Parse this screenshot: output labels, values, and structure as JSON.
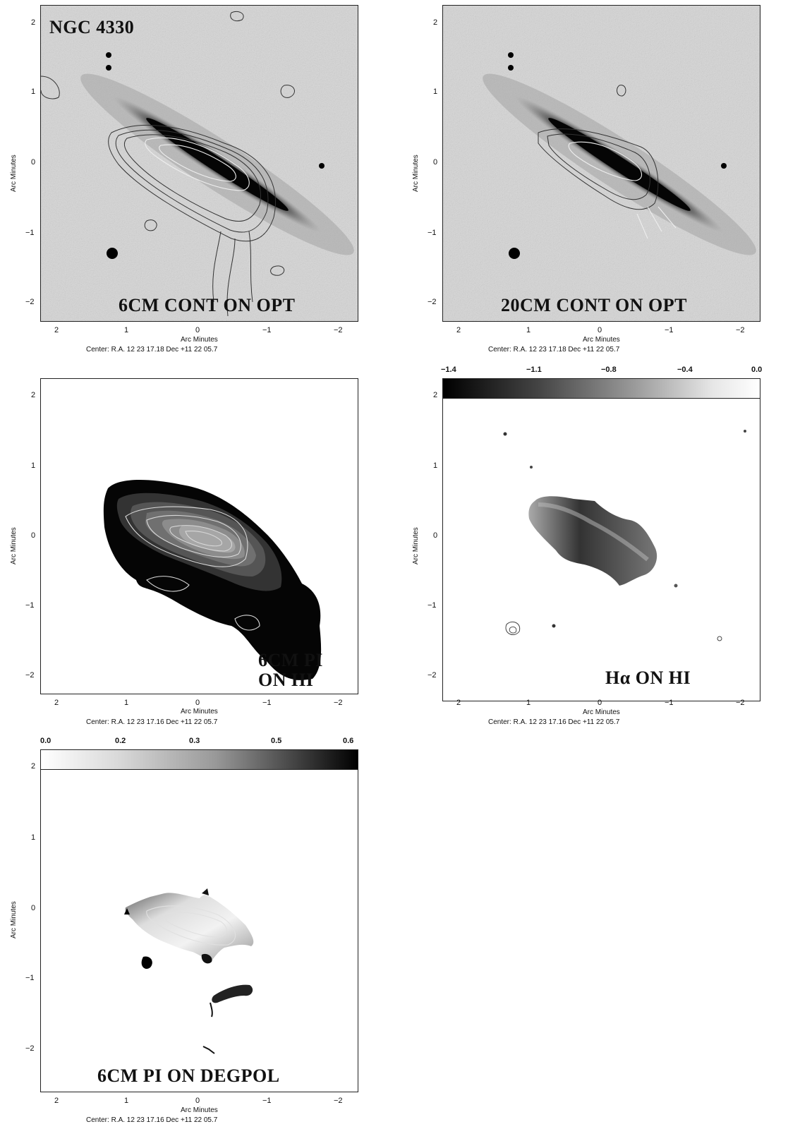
{
  "axis_label": "Arc Minutes",
  "x_ticks": [
    "2",
    "1",
    "0",
    "−1",
    "−2"
  ],
  "y_ticks": [
    "2",
    "1",
    "0",
    "−1",
    "−2"
  ],
  "center_text_a": "Center:  R.A. 12 23 17.18     Dec  +11 22 05.7",
  "center_text_b": "Center:  R.A. 12 23 17.16     Dec  +11 22 05.7",
  "panels": [
    {
      "title": "NGC 4330",
      "label": "6CM CONT ON OPT"
    },
    {
      "label": "20CM CONT ON OPT"
    },
    {
      "label": "6CM PI ON HI"
    },
    {
      "label": "Hα ON HI",
      "colorbar_ticks": [
        "−1.4",
        "−1.1",
        "−0.8",
        "−0.4",
        "0.0"
      ]
    },
    {
      "label": "6CM PI ON DEGPOL",
      "colorbar_ticks": [
        "0.0",
        "0.2",
        "0.3",
        "0.5",
        "0.6"
      ]
    }
  ],
  "colors": {
    "ink": "#111111",
    "contour_dark": "#333333",
    "contour_light": "#e8e8e8"
  }
}
